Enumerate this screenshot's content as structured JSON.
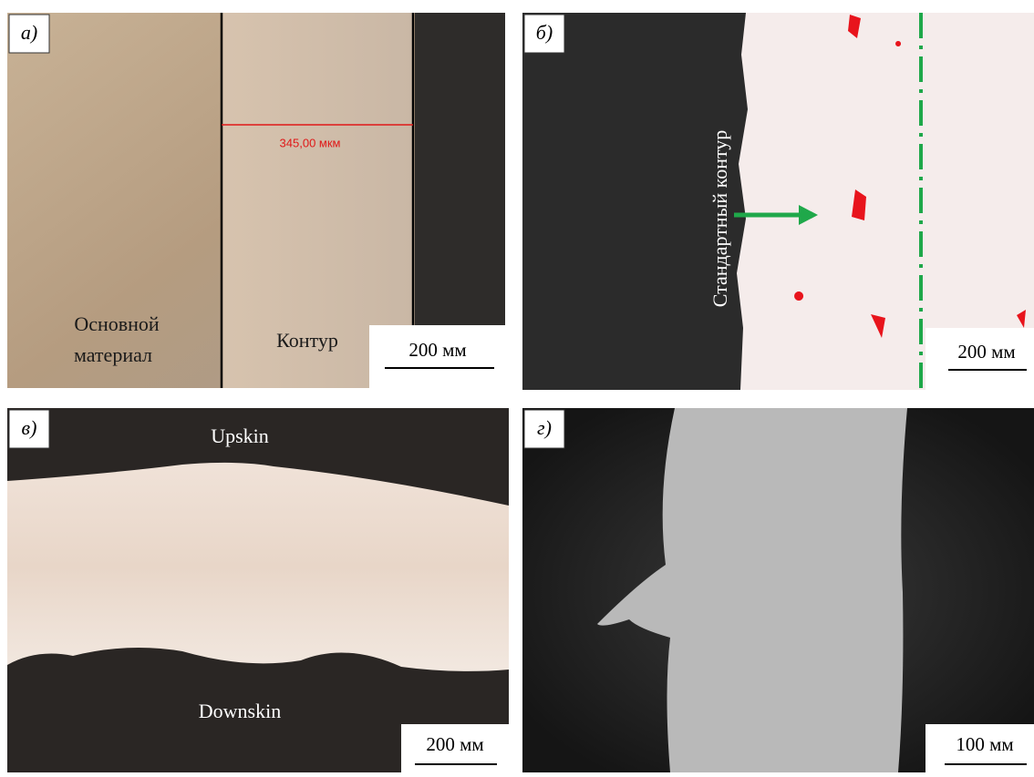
{
  "panels": [
    {
      "label": "а)",
      "annotations": [
        "Основной",
        "материал",
        "Контур",
        "345,00 мкм"
      ],
      "scale_bar": "200 мм"
    },
    {
      "label": "б)",
      "annotations": [
        "Стандартный контур"
      ],
      "scale_bar": "200 мм"
    },
    {
      "label": "в)",
      "annotations": [
        "Upskin",
        "Downskin"
      ],
      "scale_bar": "200 мм"
    },
    {
      "label": "г)",
      "annotations": [],
      "scale_bar": "100 мм"
    }
  ]
}
